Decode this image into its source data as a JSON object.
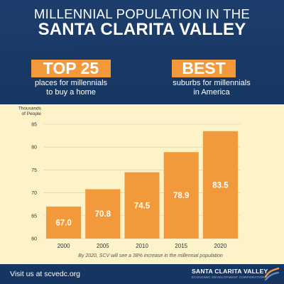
{
  "header": {
    "title_line1": "MILLENNIAL POPULATION IN THE",
    "title_line2": "SANTA CLARITA VALLEY"
  },
  "badges": [
    {
      "label": "TOP 25",
      "text_line1": "places for millennials",
      "text_line2": "to buy a home"
    },
    {
      "label": "BEST",
      "text_line1": "suburbs for millennials",
      "text_line2": "in America"
    }
  ],
  "chart_data": {
    "type": "bar",
    "title": "",
    "ylabel": "Thousands of People",
    "ylabel_line1": "Thousands",
    "ylabel_line2": "of People",
    "xlabel": "",
    "categories": [
      "2000",
      "2005",
      "2010",
      "2015",
      "2020"
    ],
    "values": [
      67.0,
      70.8,
      74.5,
      78.9,
      83.5
    ],
    "data_labels": [
      "67.0",
      "70.8",
      "74.5",
      "78.9",
      "83.5"
    ],
    "ylim": [
      60,
      85
    ],
    "yticks": [
      60,
      65,
      70,
      75,
      80,
      85
    ],
    "grid": true,
    "bar_color": "#f29a3b",
    "annotation": "By 2020, SCV will see a 38% increase in the millennial population"
  },
  "footer": {
    "visit_text": "Visit us at scvedc.org",
    "logo_main": "SANTA CLARITA VALLEY",
    "logo_sub": "ECONOMIC DEVELOPMENT CORPORATION"
  },
  "colors": {
    "navy": "#173561",
    "orange": "#f29a3b",
    "cream": "#fdf3c9"
  }
}
